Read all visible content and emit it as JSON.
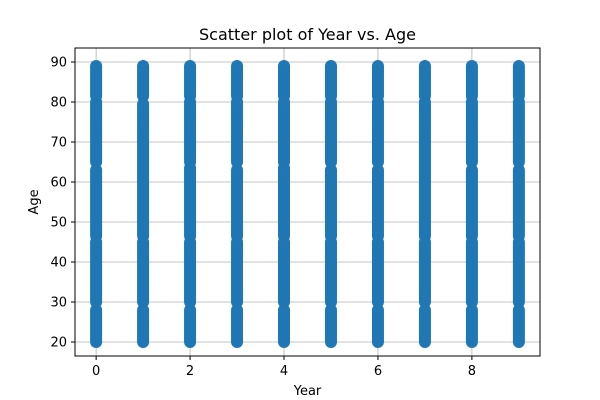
{
  "chart_data": {
    "type": "scatter",
    "title": "Scatter plot of Year vs. Age",
    "xlabel": "Year",
    "ylabel": "Age",
    "xlim": [
      -0.45,
      9.45
    ],
    "ylim": [
      16.5,
      93.5
    ],
    "x_ticks": [
      0,
      2,
      4,
      6,
      8
    ],
    "y_ticks": [
      20,
      30,
      40,
      50,
      60,
      70,
      80,
      90
    ],
    "grid": true,
    "series": [
      {
        "color": "#1f77b4",
        "x_values": [
          0,
          1,
          2,
          3,
          4,
          5,
          6,
          7,
          8,
          9
        ],
        "y_min": 20,
        "y_max": 89,
        "gaps": [
          [
            0,
            [
              28.5,
              29.5
            ],
            [
              45.5,
              46
            ],
            [
              63.5,
              64.5
            ],
            [
              80.5,
              81
            ]
          ],
          [
            1,
            [
              28.5,
              29.5
            ],
            [
              45.5,
              46
            ],
            [
              80,
              81
            ]
          ],
          [
            2,
            [
              28.5,
              29.5
            ],
            [
              45.5,
              46
            ],
            [
              64,
              64.5
            ],
            [
              80.5,
              81
            ]
          ],
          [
            3,
            [
              28.5,
              29.5
            ],
            [
              45.5,
              46
            ],
            [
              63.5,
              64.5
            ],
            [
              80.5,
              81
            ]
          ],
          [
            4,
            [
              28.5,
              29.5
            ],
            [
              45.5,
              46
            ],
            [
              64,
              64.5
            ],
            [
              80.5,
              81
            ]
          ],
          [
            5,
            [
              28.5,
              29.5
            ],
            [
              45.5,
              46
            ],
            [
              63.5,
              64.5
            ],
            [
              80.5,
              81
            ]
          ],
          [
            6,
            [
              28.5,
              29.5
            ],
            [
              45.5,
              46
            ],
            [
              63.5,
              64.5
            ],
            [
              80.5,
              81
            ]
          ],
          [
            7,
            [
              28.5,
              29.5
            ],
            [
              45.5,
              46
            ],
            [
              80.5,
              81
            ]
          ],
          [
            8,
            [
              28.5,
              29.5
            ],
            [
              45.5,
              46
            ],
            [
              63.5,
              64.5
            ],
            [
              80.5,
              81
            ]
          ],
          [
            9,
            [
              28.5,
              29.5
            ],
            [
              45.5,
              46
            ],
            [
              63.5,
              64.5
            ],
            [
              80.5,
              81
            ]
          ]
        ]
      }
    ]
  }
}
